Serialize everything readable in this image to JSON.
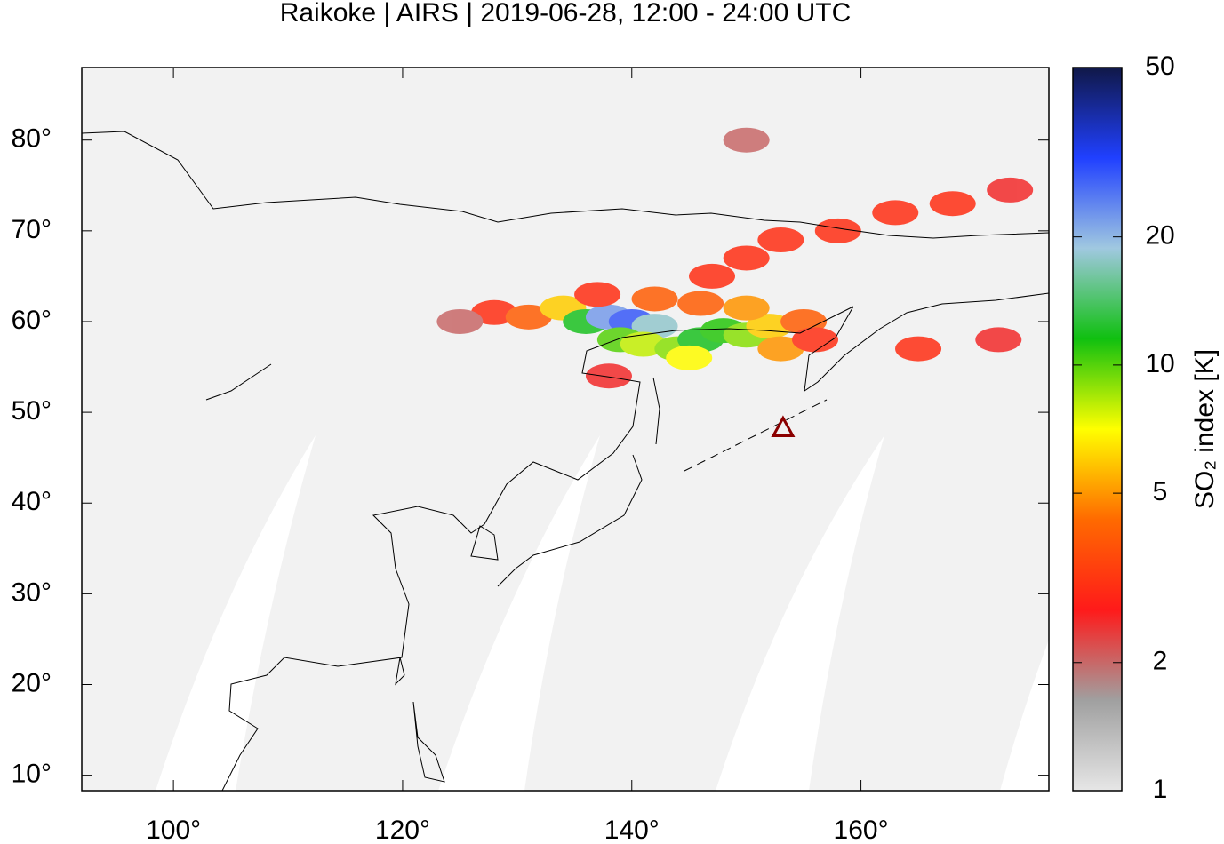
{
  "chart_data": {
    "type": "map",
    "title": "Raikoke | AIRS | 2019-06-28, 12:00 - 24:00 UTC",
    "xlim": [
      92,
      176.4
    ],
    "ylim": [
      8.3,
      88
    ],
    "xticks": [
      {
        "value": 100,
        "label": "100°"
      },
      {
        "value": 120,
        "label": "120°"
      },
      {
        "value": 140,
        "label": "140°"
      },
      {
        "value": 160,
        "label": "160°"
      }
    ],
    "yticks": [
      {
        "value": 10,
        "label": "10°"
      },
      {
        "value": 20,
        "label": "20°"
      },
      {
        "value": 30,
        "label": "30°"
      },
      {
        "value": 40,
        "label": "40°"
      },
      {
        "value": 50,
        "label": "50°"
      },
      {
        "value": 60,
        "label": "60°"
      },
      {
        "value": 70,
        "label": "70°"
      },
      {
        "value": 80,
        "label": "80°"
      }
    ],
    "colorbar": {
      "label": "SO₂ index [K]",
      "log": true,
      "lim": [
        1,
        50
      ],
      "ticks": [
        1,
        2,
        5,
        10,
        20,
        50
      ],
      "colormap": [
        "#e6e6e6",
        "#a0a0a0",
        "#ff1a1a",
        "#ff6a00",
        "#ffff00",
        "#10c010",
        "#a0c8e0",
        "#2040ff",
        "#101848"
      ]
    },
    "volcano": {
      "lon": 153.2,
      "lat": 48.3,
      "color": "#8b0000"
    },
    "plume": [
      [
        128,
        61,
        3
      ],
      [
        131,
        60.5,
        4
      ],
      [
        134,
        61.5,
        6
      ],
      [
        136,
        60,
        12
      ],
      [
        138,
        60.5,
        22
      ],
      [
        140,
        60,
        28
      ],
      [
        142,
        59.5,
        18
      ],
      [
        139,
        58,
        10
      ],
      [
        141,
        57.5,
        8
      ],
      [
        144,
        57,
        9
      ],
      [
        146,
        58,
        12
      ],
      [
        148,
        59,
        11
      ],
      [
        150,
        58.5,
        9
      ],
      [
        152,
        59.5,
        6
      ],
      [
        150,
        61.5,
        5
      ],
      [
        146,
        62,
        4
      ],
      [
        153,
        57,
        5
      ],
      [
        155,
        60,
        4
      ],
      [
        156,
        58,
        3
      ],
      [
        137,
        63,
        3
      ],
      [
        142,
        62.5,
        4
      ],
      [
        147,
        65,
        3
      ],
      [
        150,
        67,
        3
      ],
      [
        153,
        69,
        3
      ],
      [
        158,
        70,
        3
      ],
      [
        163,
        72,
        3
      ],
      [
        168,
        73,
        3
      ],
      [
        173,
        74.5,
        2.5
      ],
      [
        165,
        57,
        3
      ],
      [
        172,
        58,
        2.5
      ],
      [
        125,
        60,
        2
      ],
      [
        145,
        56,
        7
      ],
      [
        138,
        54,
        2.5
      ],
      [
        150,
        80,
        2
      ]
    ]
  }
}
